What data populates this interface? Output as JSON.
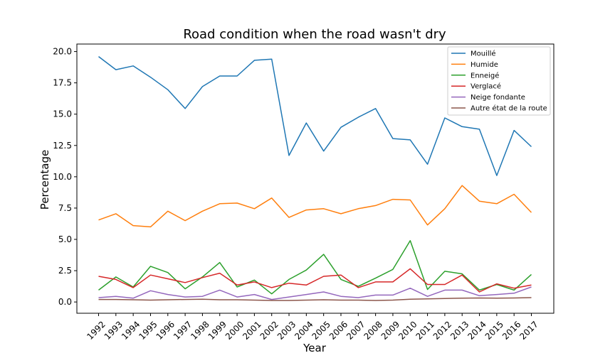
{
  "chart_data": {
    "type": "line",
    "title": "Road condition when the road wasn't dry",
    "xlabel": "Year",
    "ylabel": "Percentage",
    "categories": [
      "1992",
      "1993",
      "1994",
      "1995",
      "1996",
      "1997",
      "1998",
      "1999",
      "2000",
      "2001",
      "2002",
      "2003",
      "2004",
      "2005",
      "2006",
      "2007",
      "2008",
      "2009",
      "2010",
      "2011",
      "2012",
      "2013",
      "2014",
      "2015",
      "2016",
      "2017"
    ],
    "ylim": [
      -0.9,
      20.6
    ],
    "yticks": [
      "0.0",
      "2.5",
      "5.0",
      "7.5",
      "10.0",
      "12.5",
      "15.0",
      "17.5",
      "20.0"
    ],
    "ytick_values": [
      0,
      2.5,
      5,
      7.5,
      10,
      12.5,
      15,
      17.5,
      20
    ],
    "grid": false,
    "legend_position": "top-right",
    "series": [
      {
        "name": "Mouillé",
        "color": "#1f77b4",
        "values": [
          19.6,
          18.55,
          18.85,
          17.95,
          16.95,
          15.45,
          17.2,
          18.05,
          18.05,
          19.3,
          19.4,
          11.7,
          14.3,
          12.05,
          13.95,
          14.75,
          15.45,
          13.05,
          12.95,
          11.0,
          14.7,
          14.0,
          13.8,
          10.1,
          13.7,
          12.4
        ]
      },
      {
        "name": "Humide",
        "color": "#ff7f0e",
        "values": [
          6.55,
          7.05,
          6.1,
          6.0,
          7.25,
          6.5,
          7.25,
          7.85,
          7.9,
          7.45,
          8.3,
          6.75,
          7.35,
          7.45,
          7.05,
          7.45,
          7.7,
          8.2,
          8.15,
          6.15,
          7.45,
          9.3,
          8.05,
          7.85,
          8.6,
          7.15
        ]
      },
      {
        "name": "Enneigé",
        "color": "#2ca02c",
        "values": [
          0.95,
          2.0,
          1.2,
          2.85,
          2.35,
          1.05,
          2.0,
          3.15,
          1.2,
          1.75,
          0.65,
          1.8,
          2.55,
          3.8,
          1.8,
          1.25,
          1.9,
          2.6,
          4.9,
          1.0,
          2.45,
          2.25,
          0.95,
          1.4,
          0.95,
          2.2
        ]
      },
      {
        "name": "Verglacé",
        "color": "#d62728",
        "values": [
          2.05,
          1.8,
          1.15,
          2.15,
          1.85,
          1.55,
          1.95,
          2.3,
          1.35,
          1.6,
          1.15,
          1.5,
          1.35,
          2.05,
          2.15,
          1.15,
          1.6,
          1.6,
          2.65,
          1.4,
          1.4,
          2.15,
          0.8,
          1.45,
          1.1,
          1.35
        ]
      },
      {
        "name": "Neige fondante",
        "color": "#9467bd",
        "values": [
          0.35,
          0.45,
          0.3,
          0.9,
          0.6,
          0.4,
          0.45,
          0.95,
          0.4,
          0.6,
          0.2,
          0.4,
          0.6,
          0.8,
          0.45,
          0.35,
          0.55,
          0.55,
          1.1,
          0.45,
          0.95,
          0.95,
          0.5,
          0.6,
          0.7,
          1.2
        ]
      },
      {
        "name": "Autre état de la route",
        "color": "#8c564b",
        "values": [
          0.2,
          0.2,
          0.18,
          0.15,
          0.18,
          0.2,
          0.22,
          0.18,
          0.18,
          0.15,
          0.12,
          0.12,
          0.15,
          0.18,
          0.15,
          0.15,
          0.12,
          0.15,
          0.22,
          0.25,
          0.28,
          0.3,
          0.32,
          0.3,
          0.32,
          0.35
        ]
      }
    ]
  }
}
